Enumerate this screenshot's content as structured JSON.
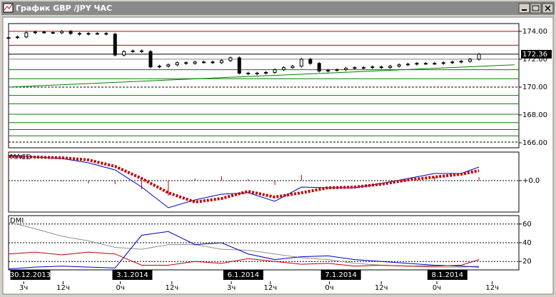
{
  "window": {
    "title": "График GBP /JPY ЧАС"
  },
  "chart_data": [
    {
      "type": "candlestick",
      "xlim": [
        0,
        115
      ],
      "ylim": [
        165.64,
        174.56
      ],
      "yticks": [
        {
          "value": 174,
          "label": "174.00"
        },
        {
          "value": 172,
          "label": "172.00"
        },
        {
          "value": 170,
          "label": "170.00"
        },
        {
          "value": 168,
          "label": "168.00"
        },
        {
          "value": 166,
          "label": "166.00"
        }
      ],
      "x": [
        0,
        2,
        4,
        6,
        8,
        10,
        12,
        14,
        16,
        18,
        20,
        22,
        24,
        26,
        28,
        30,
        32,
        34,
        36,
        38,
        40,
        42,
        44,
        46,
        48,
        50,
        52,
        54,
        56,
        58,
        60,
        62,
        64,
        66,
        68,
        70,
        72,
        74,
        76,
        78,
        80,
        82,
        84,
        86,
        88,
        90,
        92,
        94,
        96,
        98,
        100,
        102,
        104,
        106
      ],
      "open": [
        173.5,
        173.55,
        173.6,
        173.9,
        173.95,
        173.92,
        173.9,
        174.0,
        173.85,
        173.8,
        173.85,
        173.85,
        173.8,
        172.3,
        172.55,
        172.6,
        172.55,
        171.45,
        171.5,
        171.6,
        171.75,
        171.7,
        171.8,
        171.8,
        171.75,
        171.9,
        172.1,
        171.0,
        170.95,
        171.0,
        171.05,
        171.25,
        171.4,
        171.5,
        172.0,
        171.7,
        171.15,
        171.2,
        171.25,
        171.35,
        171.4,
        171.4,
        171.45,
        171.4,
        171.5,
        171.6,
        171.65,
        171.7,
        171.7,
        171.7,
        171.75,
        171.8,
        171.85,
        172.0
      ],
      "high": [
        173.65,
        173.7,
        174.0,
        174.05,
        174.05,
        174.02,
        174.1,
        174.1,
        173.95,
        173.95,
        173.95,
        173.95,
        173.9,
        172.65,
        172.7,
        172.7,
        172.65,
        171.6,
        171.7,
        171.85,
        171.85,
        171.9,
        171.9,
        171.9,
        172.0,
        172.2,
        172.2,
        171.1,
        171.1,
        171.15,
        171.35,
        171.5,
        171.6,
        172.1,
        172.1,
        171.8,
        171.3,
        171.35,
        171.45,
        171.5,
        171.5,
        171.55,
        171.55,
        171.6,
        171.7,
        171.75,
        171.8,
        171.8,
        171.8,
        171.85,
        171.9,
        171.95,
        172.1,
        172.46
      ],
      "low": [
        173.4,
        173.45,
        173.5,
        173.8,
        173.82,
        173.8,
        173.8,
        173.75,
        173.7,
        173.7,
        173.75,
        173.7,
        172.2,
        172.2,
        172.45,
        172.45,
        171.35,
        171.35,
        171.4,
        171.5,
        171.6,
        171.6,
        171.7,
        171.65,
        171.65,
        171.8,
        170.9,
        170.85,
        170.85,
        170.9,
        170.95,
        171.15,
        171.3,
        171.4,
        171.6,
        171.05,
        171.05,
        171.1,
        171.15,
        171.25,
        171.3,
        171.3,
        171.3,
        171.3,
        171.4,
        171.5,
        171.55,
        171.6,
        171.6,
        171.6,
        171.65,
        171.7,
        171.75,
        171.9
      ],
      "close": [
        173.55,
        173.6,
        173.9,
        173.95,
        173.92,
        173.9,
        174.0,
        173.85,
        173.8,
        173.85,
        173.85,
        173.8,
        172.3,
        172.55,
        172.6,
        172.55,
        171.45,
        171.5,
        171.6,
        171.75,
        171.7,
        171.8,
        171.8,
        171.75,
        171.9,
        172.1,
        171.0,
        170.95,
        171.0,
        171.05,
        171.25,
        171.4,
        171.5,
        172.0,
        171.7,
        171.15,
        171.2,
        171.25,
        171.35,
        171.4,
        171.4,
        171.45,
        171.4,
        171.5,
        171.6,
        171.65,
        171.7,
        171.7,
        171.7,
        171.75,
        171.8,
        171.85,
        172.0,
        172.36
      ],
      "levels": [
        {
          "value": 174.0,
          "color": "#c00000",
          "style": "solid"
        },
        {
          "value": 173.0,
          "color": "#c00000",
          "style": "solid"
        },
        {
          "value": 172.36,
          "color": "#000000",
          "style": "solid"
        },
        {
          "value": 172.0,
          "color": "#808080",
          "style": "solid"
        },
        {
          "value": 171.25,
          "color": "#008000",
          "style": "solid"
        },
        {
          "value": 170.6,
          "color": "#008000",
          "style": "solid"
        },
        {
          "value": 170.0,
          "color": "#000000",
          "style": "dashed"
        },
        {
          "value": 169.4,
          "color": "#008000",
          "style": "solid"
        },
        {
          "value": 168.8,
          "color": "#008000",
          "style": "solid"
        },
        {
          "value": 168.05,
          "color": "#008000",
          "style": "solid"
        },
        {
          "value": 167.45,
          "color": "#008000",
          "style": "solid"
        },
        {
          "value": 166.95,
          "color": "#008000",
          "style": "solid"
        },
        {
          "value": 166.5,
          "color": "#008000",
          "style": "solid"
        },
        {
          "value": 166.05,
          "color": "#000000",
          "style": "dashed"
        }
      ],
      "trendline": {
        "x": [
          0,
          114
        ],
        "values": [
          170.0,
          171.6
        ],
        "color": "#008000"
      },
      "last_price": {
        "value": 172.36,
        "label": "172.36"
      }
    },
    {
      "type": "line",
      "title": "MACD",
      "xlim": [
        0,
        115
      ],
      "ylim": [
        -0.44,
        0.4
      ],
      "yticks": [
        {
          "value": 0,
          "label": "+0.0"
        }
      ],
      "grid": true,
      "x": [
        0,
        6,
        12,
        18,
        24,
        30,
        36,
        42,
        48,
        54,
        60,
        66,
        72,
        78,
        84,
        90,
        96,
        102,
        106
      ],
      "series": [
        {
          "color": "#c00000",
          "style": "bars",
          "values": [
            0.01,
            0,
            -0.01,
            -0.04,
            -0.05,
            -0.12,
            -0.21,
            0.03,
            0.06,
            0.02,
            -0.06,
            0.08,
            0,
            -0.01,
            0.01,
            0.02,
            0.05,
            0.01,
            0.05
          ]
        },
        {
          "color": "#0000c0",
          "style": "solid",
          "values": [
            0.35,
            0.33,
            0.31,
            0.25,
            0.15,
            -0.09,
            -0.38,
            -0.27,
            -0.19,
            -0.17,
            -0.29,
            -0.09,
            -0.1,
            -0.1,
            -0.04,
            0.03,
            0.1,
            0.1,
            0.19
          ]
        },
        {
          "color": "#c00000",
          "style": "dotted",
          "values": [
            0.34,
            0.33,
            0.32,
            0.29,
            0.2,
            0.03,
            -0.17,
            -0.3,
            -0.25,
            -0.15,
            -0.23,
            -0.17,
            -0.1,
            -0.09,
            -0.05,
            0.01,
            0.05,
            0.09,
            0.14
          ]
        }
      ]
    },
    {
      "type": "line",
      "title": "DMI",
      "xlim": [
        0,
        115
      ],
      "ylim": [
        11,
        69
      ],
      "yticks": [
        60,
        40,
        20
      ],
      "grid": true,
      "x": [
        0,
        6,
        12,
        18,
        24,
        30,
        36,
        42,
        48,
        54,
        60,
        66,
        72,
        78,
        84,
        90,
        96,
        102,
        106
      ],
      "series": [
        {
          "color": "#909090",
          "style": "solid",
          "values": [
            62,
            55,
            47,
            42,
            35,
            33,
            38,
            38,
            33,
            32,
            28,
            24,
            22,
            18,
            16,
            15,
            14,
            14,
            15
          ]
        },
        {
          "color": "#0000c0",
          "style": "solid",
          "values": [
            12,
            14,
            15,
            14,
            13,
            48,
            52,
            38,
            40,
            28,
            22,
            25,
            26,
            22,
            20,
            18,
            16,
            15,
            14
          ]
        },
        {
          "color": "#c00000",
          "style": "solid",
          "values": [
            28,
            30,
            27,
            30,
            28,
            16,
            16,
            20,
            18,
            23,
            20,
            17,
            18,
            15,
            16,
            15,
            15,
            16,
            22
          ]
        }
      ],
      "xticks": [
        {
          "value": 3.4,
          "label": "3ч"
        },
        {
          "value": 12.3,
          "label": "12ч"
        },
        {
          "value": 25.2,
          "label": "0ч"
        },
        {
          "value": 36.8,
          "label": "12ч"
        },
        {
          "value": 50.2,
          "label": "3ч"
        },
        {
          "value": 59,
          "label": "12ч"
        },
        {
          "value": 72.3,
          "label": "0ч"
        },
        {
          "value": 84,
          "label": "12ч"
        },
        {
          "value": 96.5,
          "label": "0ч"
        },
        {
          "value": 109,
          "label": "12ч"
        }
      ],
      "date_labels": [
        {
          "value": 2,
          "label": "30.12.2013"
        },
        {
          "value": 25,
          "label": "3.1.2014"
        },
        {
          "value": 50,
          "label": "6.1.2014"
        },
        {
          "value": 72,
          "label": "7.1.2014"
        },
        {
          "value": 96,
          "label": "8.1.2014"
        }
      ]
    }
  ]
}
